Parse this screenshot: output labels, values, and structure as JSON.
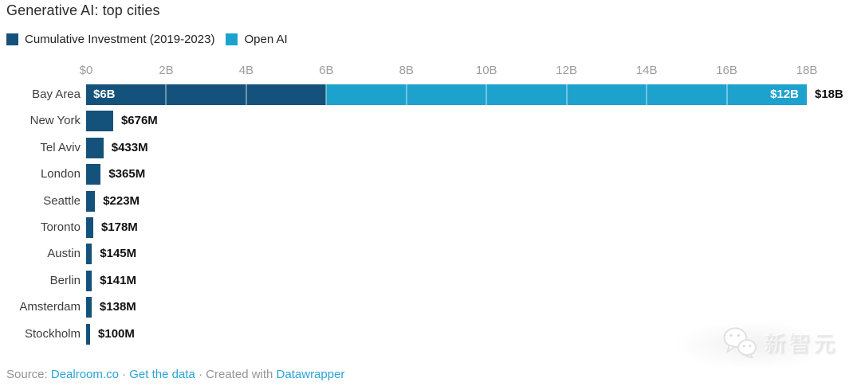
{
  "colors": {
    "dark": "#15527B",
    "light": "#1DA2CE",
    "link": "#2AA3D4",
    "tick_text": "#9D9D9D",
    "label_text": "#3D3D3D",
    "value_text": "#111111",
    "footer_text": "#949494"
  },
  "legend": {
    "items": [
      {
        "label": "Cumulative Investment (2019-2023)",
        "color_key": "dark"
      },
      {
        "label": "Open AI",
        "color_key": "light"
      }
    ]
  },
  "chart_data": {
    "type": "bar",
    "orientation": "horizontal",
    "title": "Generative AI: top cities",
    "unit": "USD",
    "x_max_billions": 18,
    "x_ticks": [
      {
        "label": "$0",
        "billions": 0
      },
      {
        "label": "2B",
        "billions": 2
      },
      {
        "label": "4B",
        "billions": 4
      },
      {
        "label": "6B",
        "billions": 6
      },
      {
        "label": "8B",
        "billions": 8
      },
      {
        "label": "10B",
        "billions": 10
      },
      {
        "label": "12B",
        "billions": 12
      },
      {
        "label": "14B",
        "billions": 14
      },
      {
        "label": "16B",
        "billions": 16
      },
      {
        "label": "18B",
        "billions": 18
      }
    ],
    "categories": [
      "Bay Area",
      "New York",
      "Tel Aviv",
      "London",
      "Seattle",
      "Toronto",
      "Austin",
      "Berlin",
      "Amsterdam",
      "Stockholm"
    ],
    "series": [
      {
        "name": "Cumulative Investment (2019-2023)",
        "color_key": "dark",
        "values_billions": [
          6,
          0.676,
          0.433,
          0.365,
          0.223,
          0.178,
          0.145,
          0.141,
          0.138,
          0.1
        ]
      },
      {
        "name": "Open AI",
        "color_key": "light",
        "values_billions": [
          12,
          0,
          0,
          0,
          0,
          0,
          0,
          0,
          0,
          0
        ]
      }
    ],
    "value_labels": [
      "$18B",
      "$676M",
      "$433M",
      "$365M",
      "$223M",
      "$178M",
      "$145M",
      "$141M",
      "$138M",
      "$100M"
    ],
    "inside_labels": [
      [
        "$6B",
        "$12B"
      ],
      null,
      null,
      null,
      null,
      null,
      null,
      null,
      null,
      null
    ],
    "gridlines": "white-over-bars",
    "legend_position": "top-left"
  },
  "footer": {
    "source_label": "Source: ",
    "source_link": "Dealroom.co",
    "separator": " · ",
    "get_data_link": "Get the data",
    "created_label": "Created with ",
    "tool_link": "Datawrapper"
  },
  "watermark": {
    "text": "新智元"
  }
}
